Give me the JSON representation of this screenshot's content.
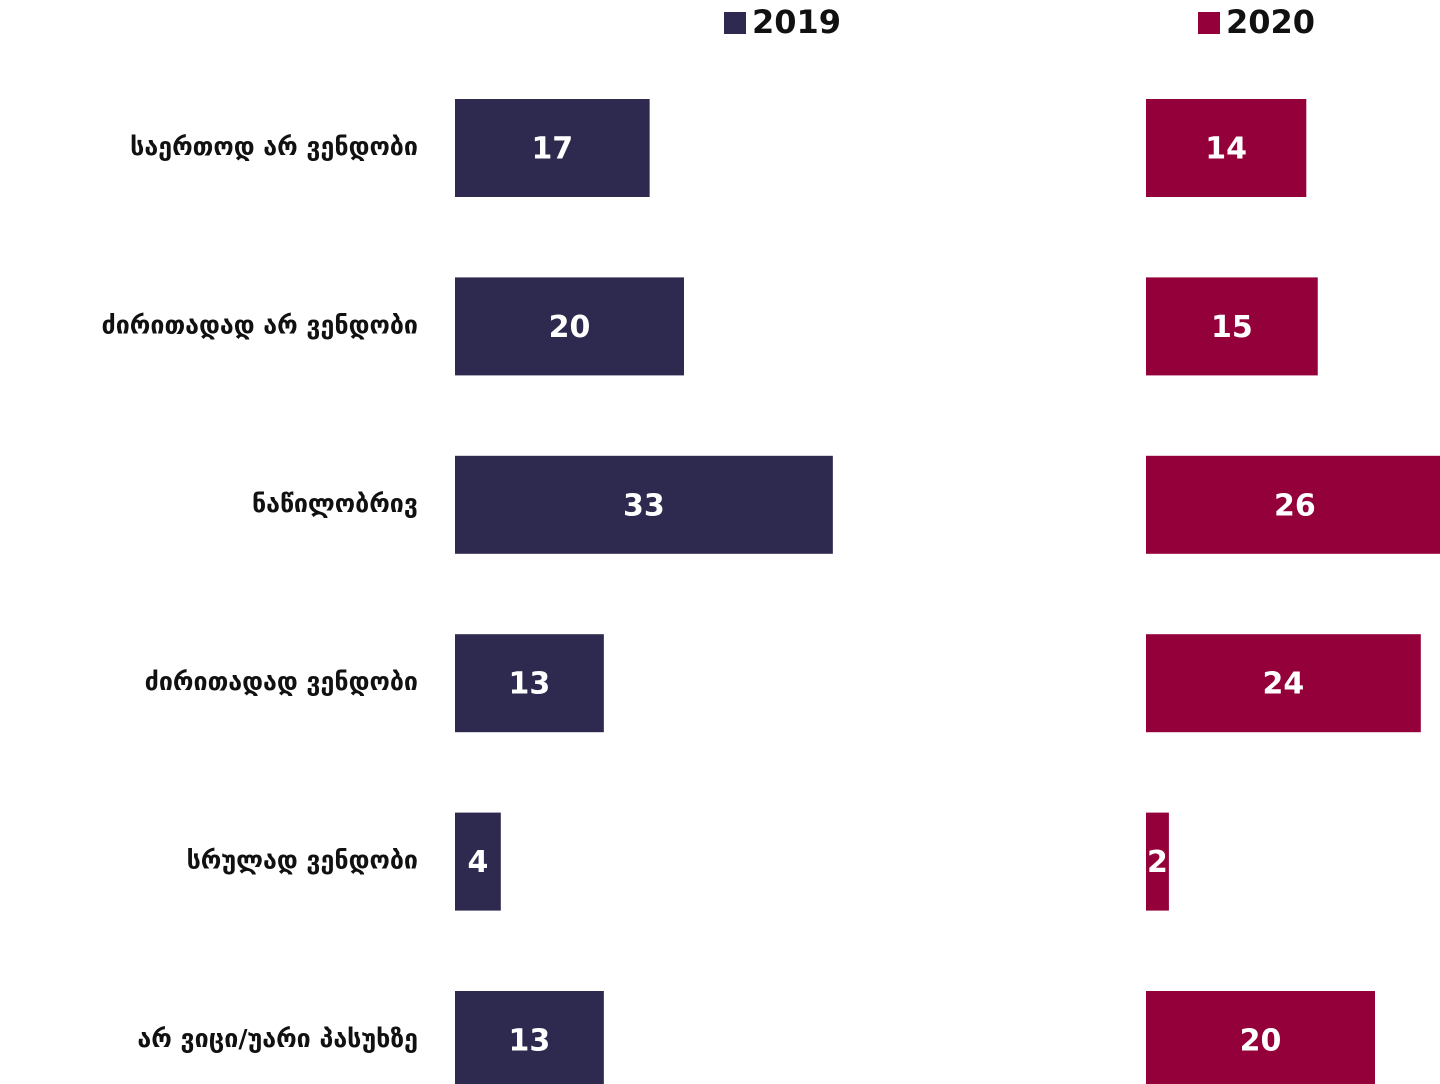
{
  "chart_data": {
    "type": "bar",
    "categories": [
      "საერთოდ არ ვენდობი",
      "ძირითადად არ ვენდობი",
      "ნაწილობრივ",
      "ძირითადად ვენდობი",
      "სრულად ვენდობი",
      "არ ვიცი/უარი პასუხზე"
    ],
    "series": [
      {
        "name": "2019",
        "color": "#2e2a4f",
        "values": [
          17,
          20,
          33,
          13,
          4,
          13
        ]
      },
      {
        "name": "2020",
        "color": "#94003a",
        "values": [
          14,
          15,
          26,
          24,
          2,
          20
        ]
      }
    ]
  }
}
